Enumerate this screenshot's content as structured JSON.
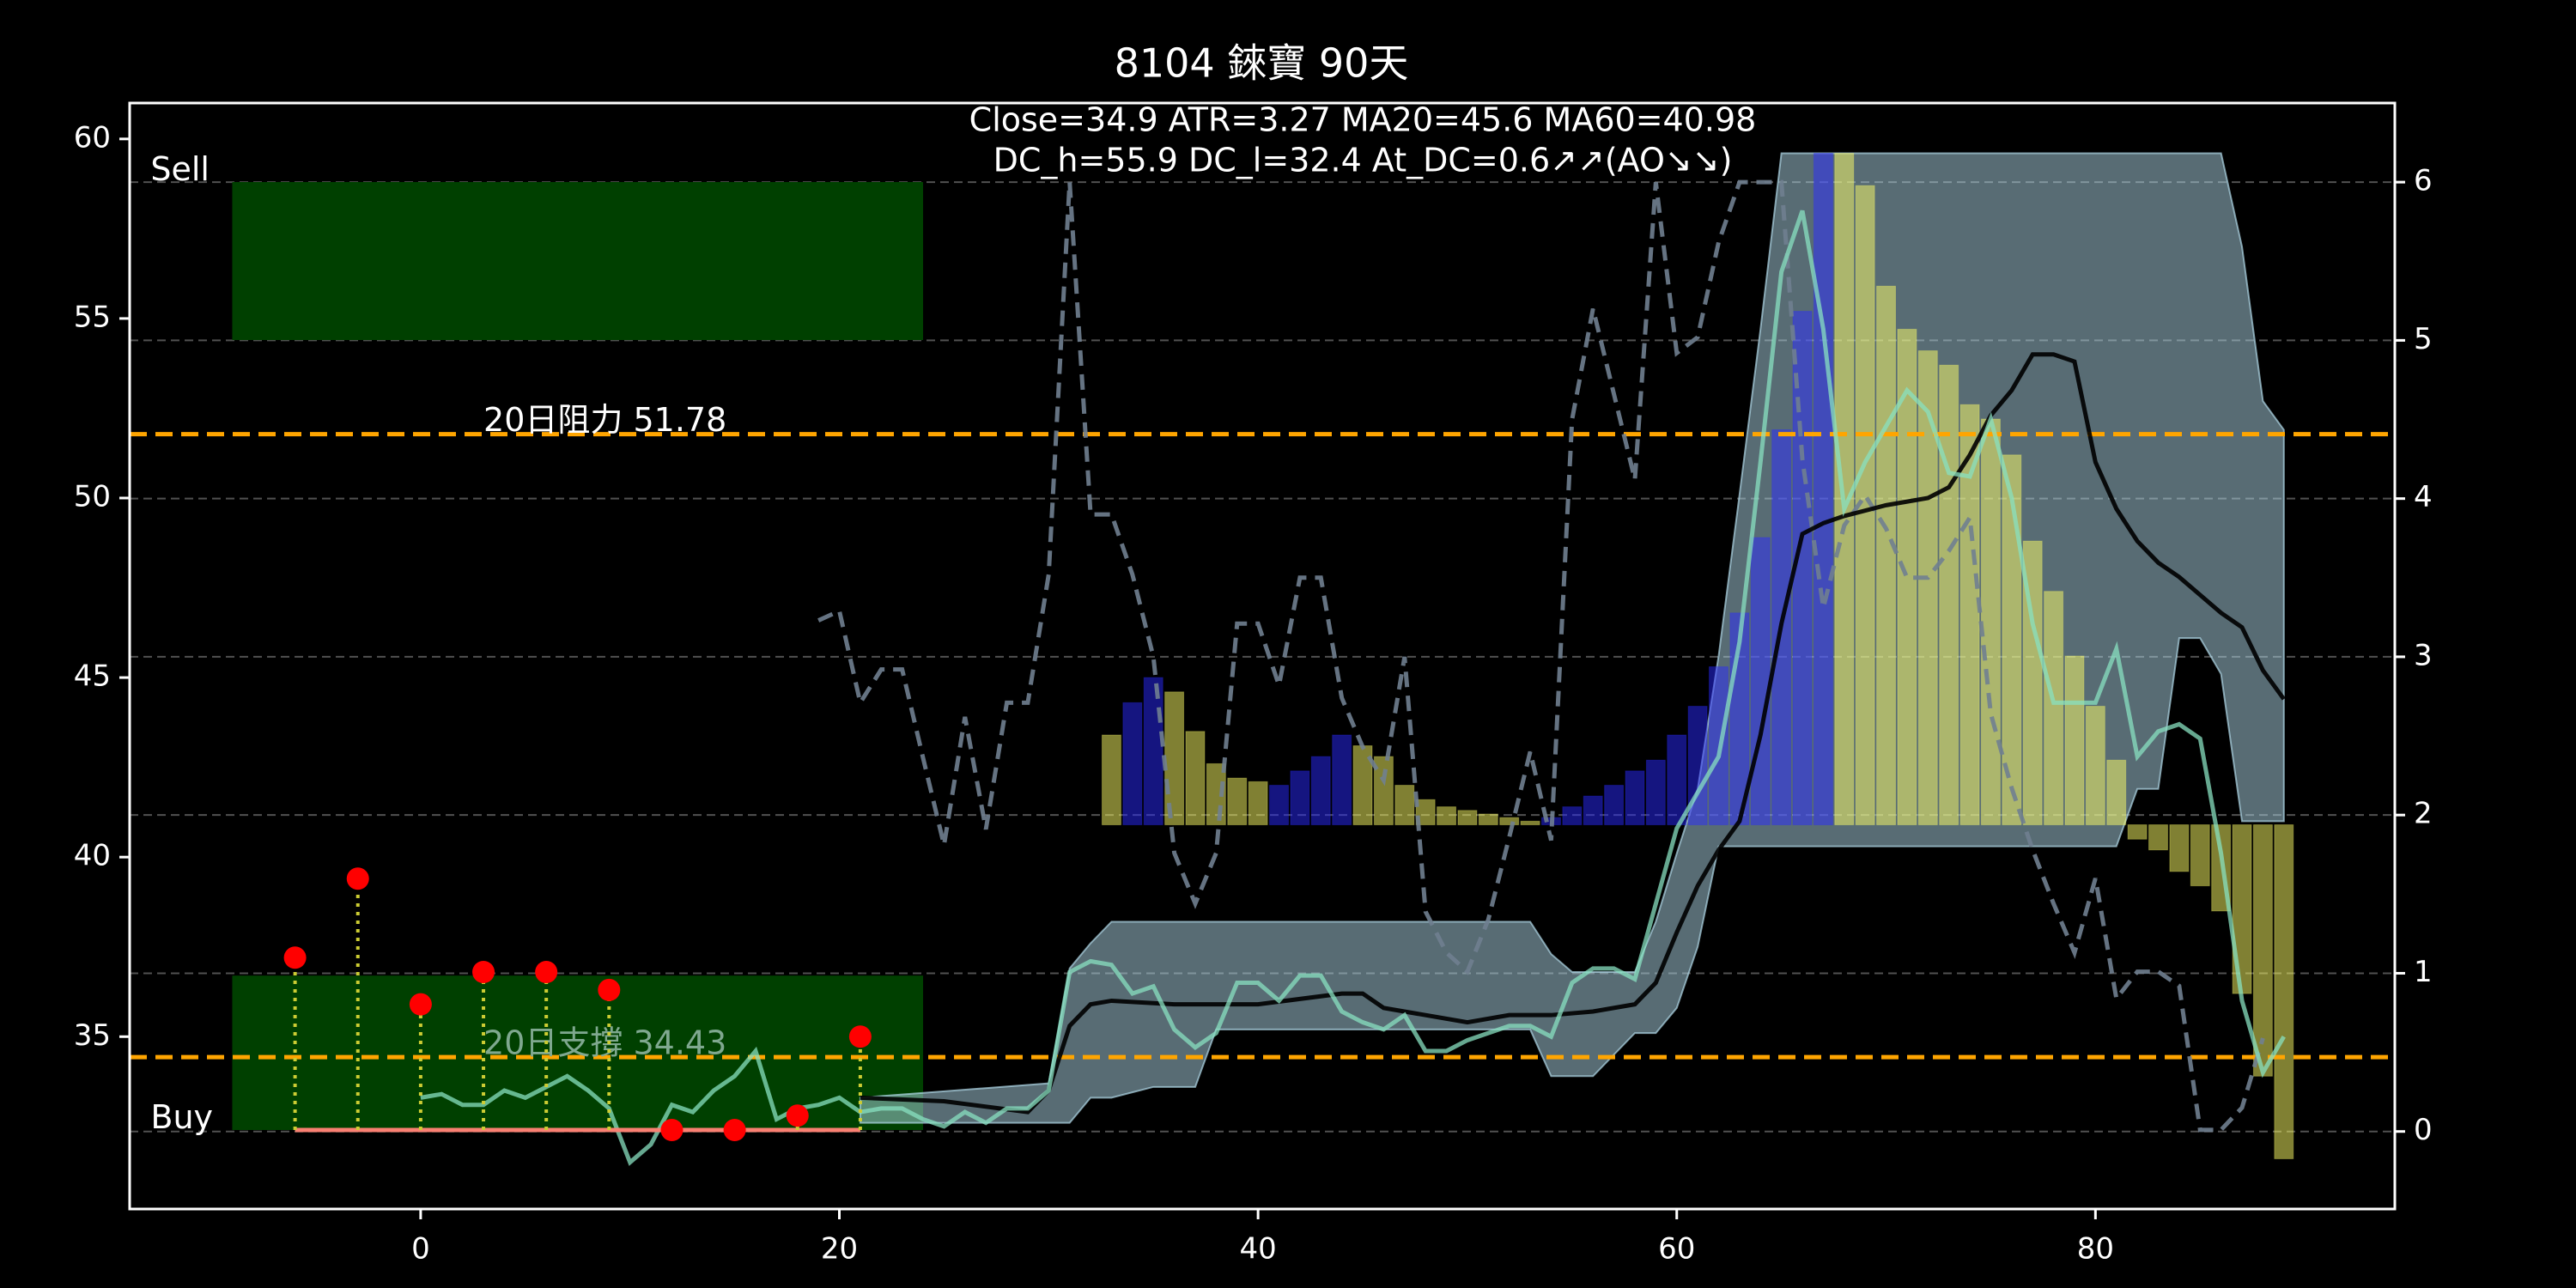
{
  "chart_data": {
    "type": "combo",
    "title": "8104 錸寶 90天",
    "subtitle": [
      "Close=34.9 ATR=3.27 MA20=45.6 MA60=40.98",
      "DC_h=55.9 DC_l=32.4 At_DC=0.6↗↗(AO↘↘)"
    ],
    "xlim": [
      -13.9,
      94.3
    ],
    "ylim": [
      30.2,
      61
    ],
    "y2lim": [
      -0.49,
      6.5
    ],
    "xticks": [
      0,
      20,
      40,
      60,
      80
    ],
    "yticks": [
      35,
      40,
      45,
      50,
      55,
      60
    ],
    "y2ticks": [
      0,
      1,
      2,
      3,
      4,
      5,
      6
    ],
    "grid": true,
    "layers": [
      {
        "type": "zone",
        "label": "Sell",
        "label_x": -12.9,
        "label_y": 59.1,
        "x": [
          -9,
          24
        ],
        "y": [
          54.4,
          58.8
        ],
        "color": "#004000"
      },
      {
        "type": "zone",
        "label": "Buy",
        "label_x": -12.9,
        "label_y": 32.7,
        "x": [
          -9,
          24
        ],
        "y": [
          32.4,
          36.7
        ],
        "color": "#004000"
      },
      {
        "type": "band",
        "color": "#b0d8e8",
        "x": [
          21,
          30,
          31,
          32,
          33,
          35,
          37,
          38,
          53,
          54,
          55,
          56,
          58,
          59,
          60,
          61,
          62,
          63,
          64,
          65,
          81,
          82,
          83,
          84,
          85,
          86,
          87,
          88,
          89
        ],
        "upper": [
          33.3,
          33.7,
          36.9,
          37.6,
          38.2,
          38.2,
          38.2,
          38.2,
          38.2,
          37.3,
          36.8,
          36.8,
          36.8,
          38.2,
          40.1,
          41.9,
          45.6,
          50.1,
          54.7,
          59.6,
          59.6,
          59.6,
          59.6,
          59.6,
          59.6,
          59.6,
          57.0,
          52.7,
          51.9
        ],
        "lower": [
          32.6,
          32.6,
          32.6,
          33.3,
          33.3,
          33.6,
          33.6,
          35.2,
          35.2,
          33.9,
          33.9,
          33.9,
          35.1,
          35.1,
          35.8,
          37.5,
          40.3,
          40.3,
          40.3,
          40.3,
          40.3,
          41.9,
          41.9,
          46.1,
          46.1,
          45.1,
          41.0,
          41.0,
          41.0
        ]
      },
      {
        "type": "bar",
        "base": 40.9,
        "x": [
          33,
          34,
          35,
          36,
          37,
          38,
          39,
          40,
          41,
          42,
          43,
          44,
          45,
          46,
          47,
          48,
          49,
          50,
          51,
          52,
          53,
          54,
          55,
          56,
          57,
          58,
          59,
          60,
          61,
          62,
          63,
          64,
          65,
          66,
          67,
          68,
          69,
          70,
          71,
          72,
          73,
          74,
          75,
          76,
          77,
          78,
          79,
          80,
          81,
          82,
          83,
          84,
          85,
          86,
          87,
          88,
          89
        ],
        "series": [
          {
            "color": "#ffff66",
            "values": [
              43.4,
              null,
              null,
              44.6,
              43.5,
              42.6,
              42.2,
              42.1,
              null,
              null,
              null,
              null,
              43.1,
              42.8,
              42.0,
              41.6,
              41.4,
              41.3,
              41.2,
              41.1,
              41.0,
              null,
              null,
              null,
              null,
              null,
              null,
              null,
              null,
              null,
              null,
              null,
              null,
              null,
              null,
              59.6,
              58.7,
              55.9,
              54.7,
              54.1,
              53.7,
              52.6,
              52.2,
              51.2,
              48.8,
              47.4,
              45.6,
              44.2,
              42.7,
              40.5,
              40.2,
              39.6,
              39.2,
              38.5,
              36.2,
              33.9,
              31.6
            ]
          },
          {
            "color": "#2a2aff",
            "values": [
              null,
              44.3,
              45.0,
              null,
              null,
              null,
              null,
              null,
              42.0,
              42.4,
              42.8,
              43.4,
              null,
              null,
              null,
              null,
              null,
              null,
              null,
              null,
              null,
              41.1,
              41.4,
              41.7,
              42.0,
              42.4,
              42.7,
              43.4,
              44.2,
              45.3,
              46.8,
              48.9,
              51.9,
              55.2,
              59.6,
              null,
              null,
              null,
              null,
              null,
              null,
              null,
              null,
              null,
              null,
              null,
              null,
              null,
              null,
              null,
              null,
              null,
              null,
              null,
              null,
              null,
              null
            ]
          }
        ]
      },
      {
        "type": "hline",
        "value": 51.78,
        "label": "20日阻力 51.78",
        "label_x": 3,
        "color": "#ffa500",
        "label_color": "#ffffff"
      },
      {
        "type": "hline",
        "value": 34.43,
        "label": "20日支撐 34.43",
        "label_x": 3,
        "color": "#ffa500",
        "label_color": "#7fa88f"
      },
      {
        "type": "line",
        "axis": "y2",
        "color": "#708090",
        "dash": true,
        "x": [
          19,
          20,
          21,
          22,
          23,
          24,
          25,
          26,
          27,
          28,
          29,
          30,
          31,
          32,
          33,
          34,
          35,
          36,
          37,
          38,
          39,
          40,
          41,
          42,
          43,
          44,
          45,
          46,
          47,
          48,
          49,
          50,
          51,
          52,
          53,
          54,
          55,
          56,
          57,
          58,
          59,
          60,
          61,
          62,
          63,
          64,
          65,
          66,
          67,
          68,
          69,
          70,
          71,
          72,
          73,
          74,
          75,
          76,
          77,
          78,
          79,
          80,
          81,
          82,
          83,
          84,
          85,
          86,
          87,
          88
        ],
        "values": [
          3.23,
          3.29,
          2.71,
          2.92,
          2.92,
          2.36,
          1.81,
          2.62,
          1.91,
          2.71,
          2.71,
          3.52,
          6.0,
          3.9,
          3.9,
          3.52,
          3.0,
          1.76,
          1.44,
          1.76,
          3.21,
          3.21,
          2.82,
          3.5,
          3.5,
          2.74,
          2.43,
          2.22,
          3.0,
          1.39,
          1.13,
          1.01,
          1.34,
          1.86,
          2.4,
          1.84,
          4.5,
          5.2,
          4.66,
          4.12,
          6.0,
          4.92,
          5.02,
          5.62,
          6.0,
          6.0,
          6.0,
          4.25,
          3.31,
          3.83,
          4.02,
          3.81,
          3.5,
          3.5,
          3.67,
          3.88,
          2.64,
          2.17,
          1.78,
          1.44,
          1.13,
          1.6,
          0.84,
          1.01,
          1.01,
          0.92,
          0.01,
          0.01,
          0.15,
          0.59
        ]
      },
      {
        "type": "line",
        "color": "#000000",
        "x": [
          21,
          25,
          29,
          30,
          31,
          32,
          33,
          36,
          40,
          44,
          45,
          46,
          48,
          50,
          52,
          54,
          56,
          58,
          59,
          60,
          61,
          62,
          63,
          64,
          65,
          66,
          67,
          68,
          70,
          72,
          73,
          74,
          75,
          76,
          77,
          78,
          79,
          80,
          81,
          82,
          83,
          84,
          85,
          86,
          87,
          88,
          89
        ],
        "values": [
          33.3,
          33.2,
          32.9,
          33.5,
          35.3,
          35.9,
          36.0,
          35.9,
          35.9,
          36.2,
          36.2,
          35.8,
          35.6,
          35.4,
          35.6,
          35.6,
          35.7,
          35.9,
          36.5,
          37.9,
          39.2,
          40.2,
          41.0,
          43.4,
          46.5,
          49.0,
          49.3,
          49.5,
          49.8,
          50.0,
          50.3,
          51.2,
          52.3,
          53.0,
          54.0,
          54.0,
          53.8,
          51.0,
          49.7,
          48.8,
          48.2,
          47.8,
          47.3,
          46.8,
          46.4,
          45.2,
          44.4
        ]
      },
      {
        "type": "line",
        "color": "#88e0c0",
        "x": [
          0,
          1,
          2,
          3,
          4,
          5,
          6,
          7,
          8,
          9,
          10,
          11,
          12,
          13,
          14,
          15,
          16,
          17,
          18,
          19,
          20,
          21,
          22,
          23,
          24,
          25,
          26,
          27,
          28,
          29,
          30,
          31,
          32,
          33,
          34,
          35,
          36,
          37,
          38,
          39,
          40,
          41,
          42,
          43,
          44,
          45,
          46,
          47,
          48,
          49,
          50,
          51,
          52,
          53,
          54,
          55,
          56,
          57,
          58,
          59,
          60,
          61,
          62,
          63,
          64,
          65,
          66,
          67,
          68,
          69,
          70,
          71,
          72,
          73,
          74,
          75,
          76,
          77,
          78,
          79,
          80,
          81,
          82,
          83,
          84,
          85,
          86,
          87,
          88,
          89
        ],
        "values": [
          33.3,
          33.4,
          33.1,
          33.1,
          33.5,
          33.3,
          33.6,
          33.9,
          33.5,
          33.0,
          31.5,
          32.0,
          33.1,
          32.9,
          33.5,
          33.9,
          34.6,
          32.7,
          33.0,
          33.1,
          33.3,
          32.9,
          33.0,
          33.0,
          32.7,
          32.5,
          32.9,
          32.6,
          33.0,
          33.0,
          33.5,
          36.8,
          37.1,
          37.0,
          36.2,
          36.4,
          35.2,
          34.7,
          35.1,
          36.5,
          36.5,
          36.0,
          36.7,
          36.7,
          35.7,
          35.4,
          35.2,
          35.6,
          34.6,
          34.6,
          34.9,
          35.1,
          35.3,
          35.3,
          35.0,
          36.5,
          36.9,
          36.9,
          36.6,
          38.7,
          40.8,
          41.8,
          42.8,
          46.0,
          51.0,
          56.3,
          58.0,
          54.7,
          49.7,
          51.0,
          52.0,
          53.0,
          52.4,
          50.7,
          50.6,
          52.2,
          50.0,
          46.5,
          44.3,
          44.3,
          44.3,
          45.8,
          42.8,
          43.5,
          43.7,
          43.3,
          40.1,
          36.0,
          34.0,
          35.0
        ]
      },
      {
        "type": "stem",
        "base": 32.4,
        "base_color": "#fa8072",
        "stem_color": "#cccc33",
        "color": "#ff0000",
        "x": [
          -6,
          -3,
          0,
          3,
          6,
          9,
          12,
          15,
          18,
          21
        ],
        "values": [
          37.2,
          39.4,
          35.9,
          36.8,
          36.8,
          36.3,
          32.4,
          32.4,
          32.8,
          35.0
        ]
      }
    ]
  }
}
